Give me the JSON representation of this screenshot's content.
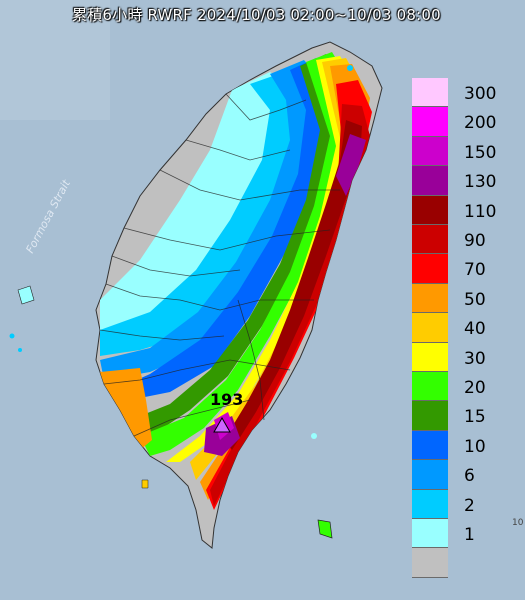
{
  "title": "累積6小時 RWRF 2024/10/03 02:00~10/03 08:00",
  "strait_label": "Formosa Strait",
  "peak_value": "193",
  "edge_text": "10",
  "legend": [
    {
      "label": "300",
      "color": "#ffc8ff"
    },
    {
      "label": "200",
      "color": "#ff00ff"
    },
    {
      "label": "150",
      "color": "#cc00cc"
    },
    {
      "label": "130",
      "color": "#990099"
    },
    {
      "label": "110",
      "color": "#990000"
    },
    {
      "label": "90",
      "color": "#cc0000"
    },
    {
      "label": "70",
      "color": "#ff0000"
    },
    {
      "label": "50",
      "color": "#ff9900"
    },
    {
      "label": "40",
      "color": "#ffcc00"
    },
    {
      "label": "30",
      "color": "#ffff00"
    },
    {
      "label": "20",
      "color": "#33ff00"
    },
    {
      "label": "15",
      "color": "#339900"
    },
    {
      "label": "10",
      "color": "#0066ff"
    },
    {
      "label": "6",
      "color": "#0099ff"
    },
    {
      "label": "2",
      "color": "#00ccff"
    },
    {
      "label": "1",
      "color": "#99ffff"
    },
    {
      "label": "",
      "color": "#c0c0c0"
    }
  ]
}
